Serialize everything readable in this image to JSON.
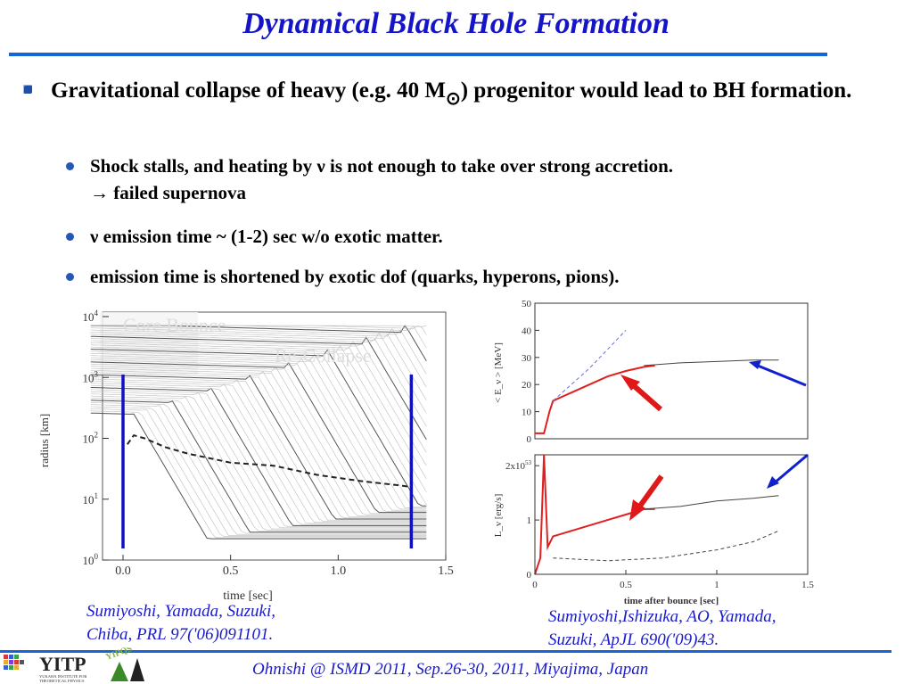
{
  "slide": {
    "title": "Dynamical Black Hole Formation",
    "bullet1_a": "Gravitational collapse of heavy (e.g. 40 M",
    "bullet1_sun": "⊙",
    "bullet1_b": ") progenitor would lead to BH formation.",
    "sub1_line1": "Shock stalls, and heating by ν is not enough to take over strong accretion.",
    "sub1_line2": "→ failed supernova",
    "sub2": "ν emission time ~ (1-2) sec w/o exotic matter.",
    "sub3": "emission time is shortened by exotic dof (quarks, hyperons, pions).",
    "cite_left_1": "Sumiyoshi, Yamada, Suzuki,",
    "cite_left_2": "Chiba, PRL 97('06)091101.",
    "cite_right_1": "Sumiyoshi,Ishizuka, AO, Yamada,",
    "cite_right_2": "Suzuki, ApJL 690('09)43.",
    "footer": "Ohnishi @  ISMD 2011, Sep.26-30, 2011, Miyajima, Japan",
    "logo_text": "YITP",
    "logo_sub1": "YUKAWA INSTITUTE FOR",
    "logo_sub2": "THEORETICAL PHYSICS",
    "logo2_text": "YIPQS"
  },
  "chart_data": [
    {
      "type": "line",
      "xlabel": "time [sec]",
      "ylabel": "radius [km]",
      "xlim": [
        0,
        1.5
      ],
      "ylim_log10": [
        0,
        4
      ],
      "x_ticks": [
        "0.0",
        "0.5",
        "1.0",
        "1.5"
      ],
      "y_ticks": [
        "10^0",
        "10^1",
        "10^2",
        "10^3",
        "10^4"
      ],
      "annotations": [
        "Core Bounce",
        "Re-Collapse"
      ],
      "markers": [
        {
          "name": "core bounce",
          "x": 0.0,
          "color": "#1010c0"
        },
        {
          "name": "re-collapse",
          "x": 1.34,
          "color": "#1010c0"
        }
      ],
      "series": [
        {
          "name": "",
          "style": "dashed",
          "x": [
            0.02,
            0.05,
            0.1,
            0.2,
            0.3,
            0.5,
            0.7,
            0.9,
            1.1,
            1.3,
            1.34
          ],
          "log10_r": [
            1.9,
            2.05,
            2.0,
            1.85,
            1.75,
            1.6,
            1.55,
            1.4,
            1.3,
            1.22,
            1.2
          ]
        }
      ]
    },
    {
      "type": "line",
      "ylabel": "< E_ν > [MeV]",
      "xlim": [
        0,
        1.5
      ],
      "ylim": [
        0,
        50
      ],
      "y_ticks": [
        "0",
        "10",
        "20",
        "30",
        "40",
        "50"
      ],
      "series": [
        {
          "name": "",
          "color": "#e02020",
          "x": [
            0,
            0.05,
            0.08,
            0.1,
            0.2,
            0.3,
            0.4,
            0.5,
            0.6,
            0.66
          ],
          "y": [
            2,
            2,
            10,
            14,
            17,
            20,
            23,
            25,
            26.5,
            27
          ]
        },
        {
          "name": "",
          "color": "#444444",
          "x": [
            0.6,
            0.8,
            1.0,
            1.2,
            1.34
          ],
          "y": [
            27,
            28,
            28.5,
            29,
            29
          ]
        },
        {
          "name": "",
          "color": "#6070e0",
          "style": "dashed",
          "x": [
            0.1,
            0.2,
            0.3,
            0.4,
            0.5
          ],
          "y": [
            14,
            20,
            26,
            33,
            40
          ]
        }
      ]
    },
    {
      "type": "line",
      "xlabel": "time after bounce [sec]",
      "ylabel": "L_ν [erg/s]",
      "xlim": [
        0,
        1.5
      ],
      "ylim": [
        0,
        2.2
      ],
      "x_ticks": [
        "0",
        "0.5",
        "1",
        "1.5"
      ],
      "y_ticks": [
        "0",
        "1",
        "2x10^53"
      ],
      "series": [
        {
          "name": "",
          "color": "#e02020",
          "x": [
            0,
            0.03,
            0.05,
            0.07,
            0.1,
            0.2,
            0.3,
            0.4,
            0.5,
            0.6,
            0.66
          ],
          "y": [
            0,
            0.3,
            2.2,
            0.5,
            0.7,
            0.8,
            0.9,
            1.0,
            1.1,
            1.2,
            1.2
          ]
        },
        {
          "name": "",
          "color": "#444444",
          "x": [
            0.6,
            0.8,
            1.0,
            1.2,
            1.34
          ],
          "y": [
            1.2,
            1.25,
            1.35,
            1.4,
            1.45
          ]
        },
        {
          "name": "",
          "color": "#444444",
          "style": "dashed",
          "x": [
            0.1,
            0.4,
            0.7,
            1.0,
            1.2,
            1.34
          ],
          "y": [
            0.3,
            0.25,
            0.3,
            0.45,
            0.6,
            0.8
          ]
        }
      ]
    }
  ]
}
